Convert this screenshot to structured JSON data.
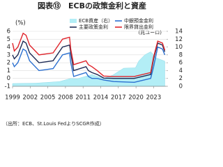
{
  "chart_data": {
    "type": "line",
    "title": "図表⑬　ECBの政策金利と資産",
    "y_label": "(%)",
    "y2_label": "(兆ユーロ)",
    "source": "（出所：ECB、St.Louis FedよりSCGR作成）",
    "xlim": [
      1999,
      2025.2
    ],
    "xticks": [
      1999,
      2002,
      2005,
      2008,
      2011,
      2014,
      2017,
      2020,
      2023
    ],
    "ylim": [
      -1,
      6
    ],
    "yticks": [
      -1,
      0,
      1,
      2,
      3,
      4,
      5,
      6
    ],
    "y2lim": [
      0,
      14
    ],
    "y2ticks": [
      0,
      2,
      4,
      6,
      8,
      10,
      12,
      14
    ],
    "grid": true,
    "series": [
      {
        "name": "ECB資産（右）",
        "color": "#b3eef6",
        "kind": "area",
        "axis": "y2",
        "x": [
          1999,
          2003,
          2007,
          2008.9,
          2010,
          2012.5,
          2014.5,
          2016,
          2017.9,
          2019.9,
          2020.5,
          2021.5,
          2022.5,
          2023.5,
          2024.9
        ],
        "values": [
          0.7,
          0.8,
          1.2,
          2.0,
          1.9,
          3.0,
          2.0,
          2.8,
          4.6,
          4.7,
          6.5,
          8.0,
          8.8,
          7.2,
          6.4
        ]
      },
      {
        "name": "中銀預金金利",
        "color": "#2a6fd0",
        "kind": "line",
        "x": [
          1999,
          1999.3,
          1999.9,
          2000.8,
          2001.3,
          2001.9,
          2003.5,
          2005.9,
          2007.5,
          2008.7,
          2008.9,
          2009.4,
          2011.5,
          2011.9,
          2012.5,
          2013.4,
          2014.5,
          2016.2,
          2019.7,
          2022.5,
          2023.0,
          2023.7,
          2024.5,
          2024.9
        ],
        "values": [
          2.0,
          1.5,
          2.0,
          3.75,
          3.5,
          2.25,
          1.0,
          1.25,
          3.0,
          3.25,
          2.0,
          0.25,
          0.75,
          0.25,
          0.0,
          0.0,
          -0.2,
          -0.4,
          -0.5,
          0.0,
          1.5,
          4.0,
          3.75,
          3.0
        ]
      },
      {
        "name": "主要政策金利",
        "color": "#1e2b55",
        "kind": "line",
        "x": [
          1999,
          1999.3,
          1999.9,
          2000.8,
          2001.3,
          2001.9,
          2003.5,
          2005.9,
          2007.5,
          2008.7,
          2008.9,
          2009.4,
          2011.5,
          2011.9,
          2012.5,
          2013.4,
          2014.5,
          2016.2,
          2019.7,
          2022.5,
          2023.0,
          2023.7,
          2024.5,
          2024.9
        ],
        "values": [
          3.0,
          2.5,
          3.0,
          4.75,
          4.5,
          3.25,
          2.0,
          2.25,
          4.0,
          4.25,
          3.25,
          1.0,
          1.5,
          1.0,
          0.75,
          0.5,
          0.05,
          0.0,
          0.0,
          0.5,
          2.5,
          4.5,
          4.25,
          3.4
        ]
      },
      {
        "name": "限界貸出金利",
        "color": "#e0242b",
        "kind": "line",
        "x": [
          1999,
          1999.3,
          1999.9,
          2000.8,
          2001.3,
          2001.9,
          2003.5,
          2005.9,
          2007.5,
          2008.7,
          2008.9,
          2009.4,
          2011.5,
          2011.9,
          2012.5,
          2013.4,
          2014.5,
          2016.2,
          2019.7,
          2022.5,
          2023.0,
          2023.7,
          2024.5,
          2024.9
        ],
        "values": [
          4.5,
          3.5,
          4.0,
          5.75,
          5.5,
          4.25,
          3.0,
          3.25,
          5.0,
          5.25,
          3.75,
          1.75,
          2.25,
          1.75,
          1.5,
          1.0,
          0.3,
          0.25,
          0.25,
          0.75,
          2.75,
          4.75,
          4.5,
          3.6
        ]
      }
    ]
  }
}
